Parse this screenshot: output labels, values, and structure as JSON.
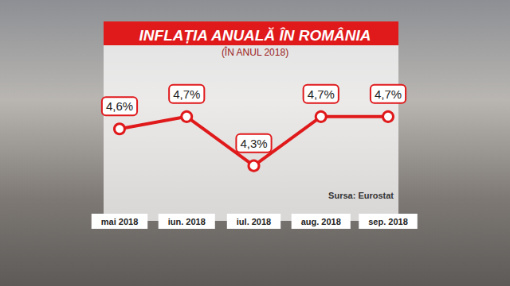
{
  "chart_data": {
    "type": "line",
    "title": "INFLAȚIA ANUALĂ ÎN ROMÂNIA",
    "subtitle": "(ÎN ANUL 2018)",
    "annotation": "Sursa: Eurostat",
    "categories": [
      "mai 2018",
      "iun. 2018",
      "iul. 2018",
      "aug. 2018",
      "sep. 2018"
    ],
    "values": [
      4.6,
      4.7,
      4.3,
      4.7,
      4.7
    ],
    "value_labels": [
      "4,6%",
      "4,7%",
      "4,3%",
      "4,7%",
      "4,7%"
    ],
    "ylim": [
      4.0,
      5.1
    ],
    "color": "#e0191b",
    "marker": "circle",
    "line_style": "solid",
    "data_labels": true,
    "tick_labels": "x",
    "grid": false
  }
}
